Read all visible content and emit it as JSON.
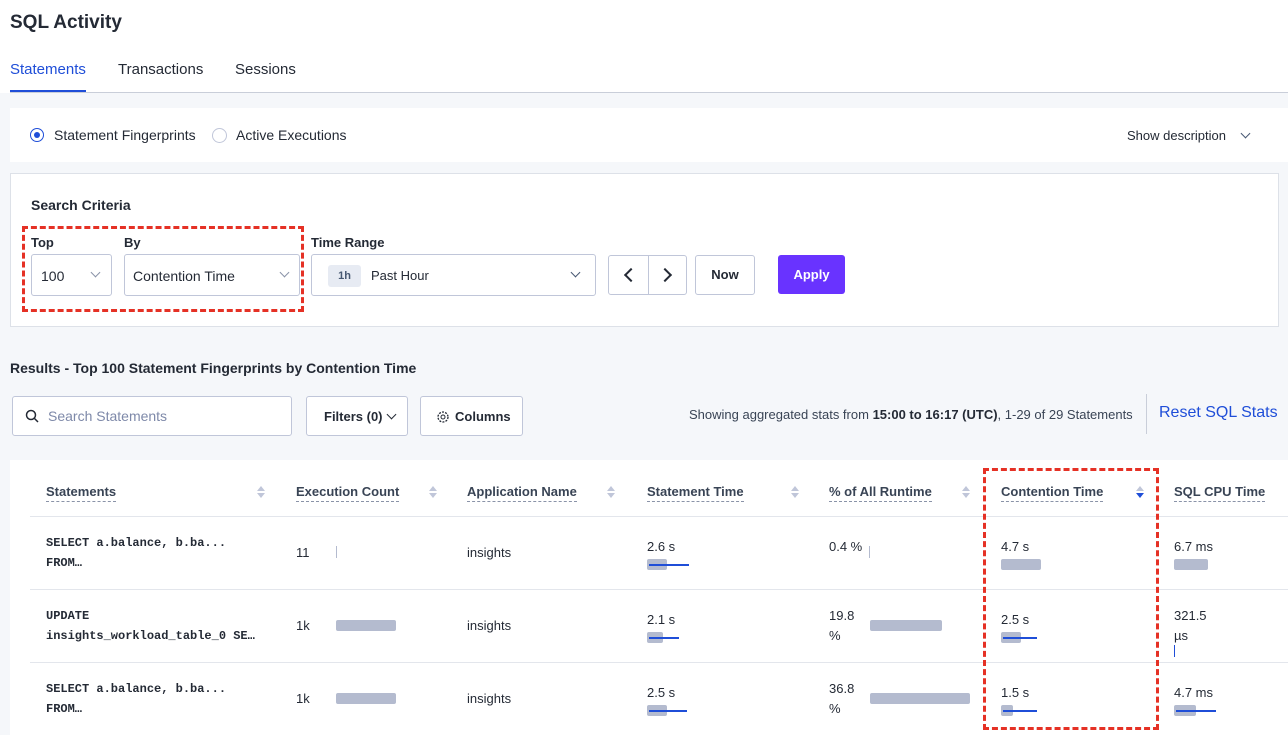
{
  "header": {
    "title": "SQL Activity"
  },
  "tabs": [
    "Statements",
    "Transactions",
    "Sessions"
  ],
  "mode": {
    "options": [
      "Statement Fingerprints",
      "Active Executions"
    ],
    "description_toggle": "Show description"
  },
  "search_criteria": {
    "title": "Search Criteria",
    "top_label": "Top",
    "top_value": "100",
    "by_label": "By",
    "by_value": "Contention Time",
    "time_range_label": "Time Range",
    "time_badge": "1h",
    "time_value": "Past Hour",
    "now": "Now",
    "apply": "Apply"
  },
  "results": {
    "title": "Results - Top 100 Statement Fingerprints by Contention Time",
    "search_placeholder": "Search Statements",
    "filters": "Filters (0)",
    "columns": "Columns",
    "summary_prefix": "Showing aggregated stats from",
    "summary_range": "15:00 to 16:17 (UTC)",
    "summary_suffix": ", 1-29 of 29 Statements",
    "reset": "Reset SQL Stats"
  },
  "table": {
    "headers": [
      "Statements",
      "Execution Count",
      "Application Name",
      "Statement Time",
      "% of All Runtime",
      "Contention Time",
      "SQL CPU Time"
    ],
    "rows": [
      [
        "SELECT a.balance, b.ba...\nFROM…",
        "11",
        "insights",
        "2.6 s",
        "0.4 %",
        "4.7 s",
        "6.7 ms"
      ],
      [
        "UPDATE\ninsights_workload_table_0 SE…",
        "1k",
        "insights",
        "2.1 s",
        "19.8\n%",
        "2.5 s",
        "321.5\nµs"
      ],
      [
        "SELECT a.balance, b.ba...\nFROM…",
        "1k",
        "insights",
        "2.5 s",
        "36.8\n%",
        "1.5 s",
        "4.7 ms"
      ]
    ]
  }
}
